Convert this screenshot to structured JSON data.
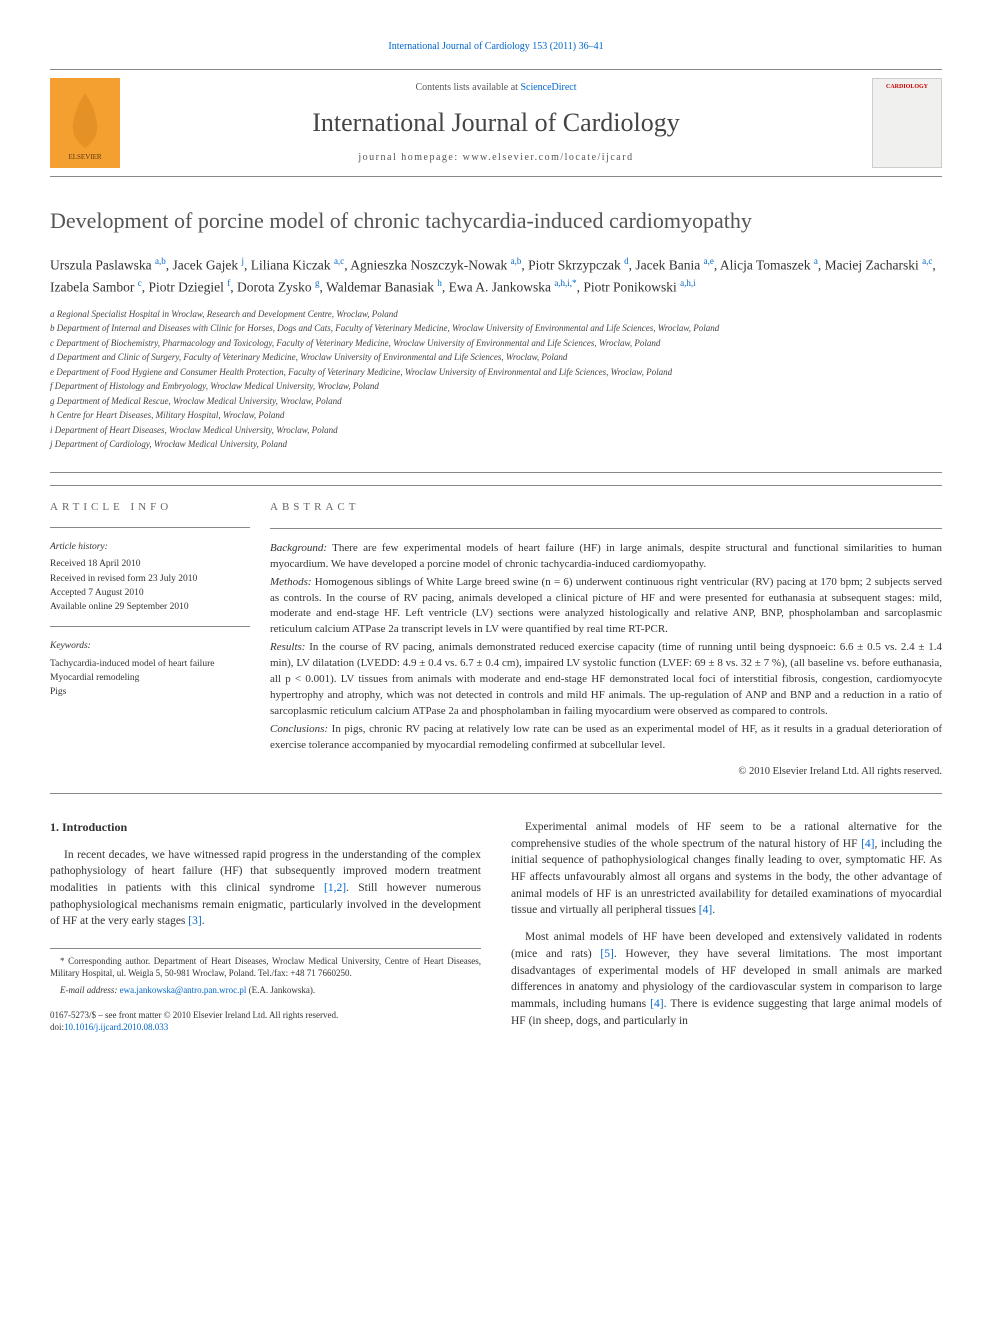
{
  "header": {
    "top_link": "International Journal of Cardiology 153 (2011) 36–41",
    "contents_prefix": "Contents lists available at ",
    "contents_link": "ScienceDirect",
    "journal_name": "International Journal of Cardiology",
    "homepage_label": "journal homepage: www.elsevier.com/locate/ijcard",
    "publisher": "ELSEVIER",
    "cover_label": "CARDIOLOGY"
  },
  "article": {
    "title": "Development of porcine model of chronic tachycardia-induced cardiomyopathy",
    "authors_html": "Urszula Paslawska <sup>a,b</sup>, Jacek Gajek <sup>j</sup>, Liliana Kiczak <sup>a,c</sup>, Agnieszka Noszczyk-Nowak <sup>a,b</sup>, Piotr Skrzypczak <sup>d</sup>, Jacek Bania <sup>a,e</sup>, Alicja Tomaszek <sup>a</sup>, Maciej Zacharski <sup>a,c</sup>, Izabela Sambor <sup>c</sup>, Piotr Dziegiel <sup>f</sup>, Dorota Zysko <sup>g</sup>, Waldemar Banasiak <sup>h</sup>, Ewa A. Jankowska <sup>a,h,i,*</sup>, Piotr Ponikowski <sup>a,h,i</sup>"
  },
  "affiliations": [
    "a Regional Specialist Hospital in Wroclaw, Research and Development Centre, Wroclaw, Poland",
    "b Department of Internal and Diseases with Clinic for Horses, Dogs and Cats, Faculty of Veterinary Medicine, Wroclaw University of Environmental and Life Sciences, Wroclaw, Poland",
    "c Department of Biochemistry, Pharmacology and Toxicology, Faculty of Veterinary Medicine, Wroclaw University of Environmental and Life Sciences, Wroclaw, Poland",
    "d Department and Clinic of Surgery, Faculty of Veterinary Medicine, Wroclaw University of Environmental and Life Sciences, Wroclaw, Poland",
    "e Department of Food Hygiene and Consumer Health Protection, Faculty of Veterinary Medicine, Wroclaw University of Environmental and Life Sciences, Wroclaw, Poland",
    "f Department of Histology and Embryology, Wroclaw Medical University, Wroclaw, Poland",
    "g Department of Medical Rescue, Wroclaw Medical University, Wroclaw, Poland",
    "h Centre for Heart Diseases, Military Hospital, Wroclaw, Poland",
    "i Department of Heart Diseases, Wroclaw Medical University, Wroclaw, Poland",
    "j Department of Cardiology, Wrocław Medical University, Poland"
  ],
  "info": {
    "heading": "ARTICLE INFO",
    "history_heading": "Article history:",
    "received": "Received 18 April 2010",
    "revised": "Received in revised form 23 July 2010",
    "accepted": "Accepted 7 August 2010",
    "online": "Available online 29 September 2010",
    "keywords_heading": "Keywords:",
    "kw1": "Tachycardia-induced model of heart failure",
    "kw2": "Myocardial remodeling",
    "kw3": "Pigs"
  },
  "abstract": {
    "heading": "ABSTRACT",
    "background_label": "Background:",
    "background": "There are few experimental models of heart failure (HF) in large animals, despite structural and functional similarities to human myocardium. We have developed a porcine model of chronic tachycardia-induced cardiomyopathy.",
    "methods_label": "Methods:",
    "methods": "Homogenous siblings of White Large breed swine (n = 6) underwent continuous right ventricular (RV) pacing at 170 bpm; 2 subjects served as controls. In the course of RV pacing, animals developed a clinical picture of HF and were presented for euthanasia at subsequent stages: mild, moderate and end-stage HF. Left ventricle (LV) sections were analyzed histologically and relative ANP, BNP, phospholamban and sarcoplasmic reticulum calcium ATPase 2a transcript levels in LV were quantified by real time RT-PCR.",
    "results_label": "Results:",
    "results": "In the course of RV pacing, animals demonstrated reduced exercise capacity (time of running until being dyspnoeic: 6.6 ± 0.5 vs. 2.4 ± 1.4 min), LV dilatation (LVEDD: 4.9 ± 0.4 vs. 6.7 ± 0.4 cm), impaired LV systolic function (LVEF: 69 ± 8 vs. 32 ± 7 %), (all baseline vs. before euthanasia, all p < 0.001). LV tissues from animals with moderate and end-stage HF demonstrated local foci of interstitial fibrosis, congestion, cardiomyocyte hypertrophy and atrophy, which was not detected in controls and mild HF animals. The up-regulation of ANP and BNP and a reduction in a ratio of sarcoplasmic reticulum calcium ATPase 2a and phospholamban in failing myocardium were observed as compared to controls.",
    "conclusions_label": "Conclusions:",
    "conclusions": "In pigs, chronic RV pacing at relatively low rate can be used as an experimental model of HF, as it results in a gradual deterioration of exercise tolerance accompanied by myocardial remodeling confirmed at subcellular level.",
    "copyright": "© 2010 Elsevier Ireland Ltd. All rights reserved."
  },
  "body": {
    "section1_heading": "1. Introduction",
    "p1a": "In recent decades, we have witnessed rapid progress in the understanding of the complex pathophysiology of heart failure (HF) that subsequently improved modern treatment modalities in patients with this clinical syndrome ",
    "ref12": "[1,2]",
    "p1b": ". Still however numerous pathophysiological mechanisms remain enigmatic, particularly involved in the development of HF at the very early stages ",
    "ref3": "[3]",
    "p1c": ".",
    "p2a": "Experimental animal models of HF seem to be a rational alternative for the comprehensive studies of the whole spectrum of the natural history of HF ",
    "ref4a": "[4]",
    "p2b": ", including the initial sequence of pathophysiological changes finally leading to over, symptomatic HF. As HF affects unfavourably almost all organs and systems in the body, the other advantage of animal models of HF is an unrestricted availability for detailed examinations of myocardial tissue and virtually all peripheral tissues ",
    "ref4b": "[4]",
    "p2c": ".",
    "p3a": "Most animal models of HF have been developed and extensively validated in rodents (mice and rats) ",
    "ref5": "[5]",
    "p3b": ". However, they have several limitations. The most important disadvantages of experimental models of HF developed in small animals are marked differences in anatomy and physiology of the cardiovascular system in comparison to large mammals, including humans ",
    "ref4c": "[4]",
    "p3c": ". There is evidence suggesting that large animal models of HF (in sheep, dogs, and particularly in"
  },
  "footnotes": {
    "corr": "* Corresponding author. Department of Heart Diseases, Wroclaw Medical University, Centre of Heart Diseases, Military Hospital, ul. Weigla 5, 50-981 Wroclaw, Poland. Tel./fax: +48 71 7660250.",
    "email_label": "E-mail address: ",
    "email": "ewa.jankowska@antro.pan.wroc.pl",
    "email_suffix": " (E.A. Jankowska).",
    "issn": "0167-5273/$ – see front matter © 2010 Elsevier Ireland Ltd. All rights reserved.",
    "doi_label": "doi:",
    "doi": "10.1016/j.ijcard.2010.08.033"
  },
  "colors": {
    "link": "#0066cc",
    "text": "#333333",
    "rule": "#888888",
    "elsevier_orange": "#f4a030"
  }
}
